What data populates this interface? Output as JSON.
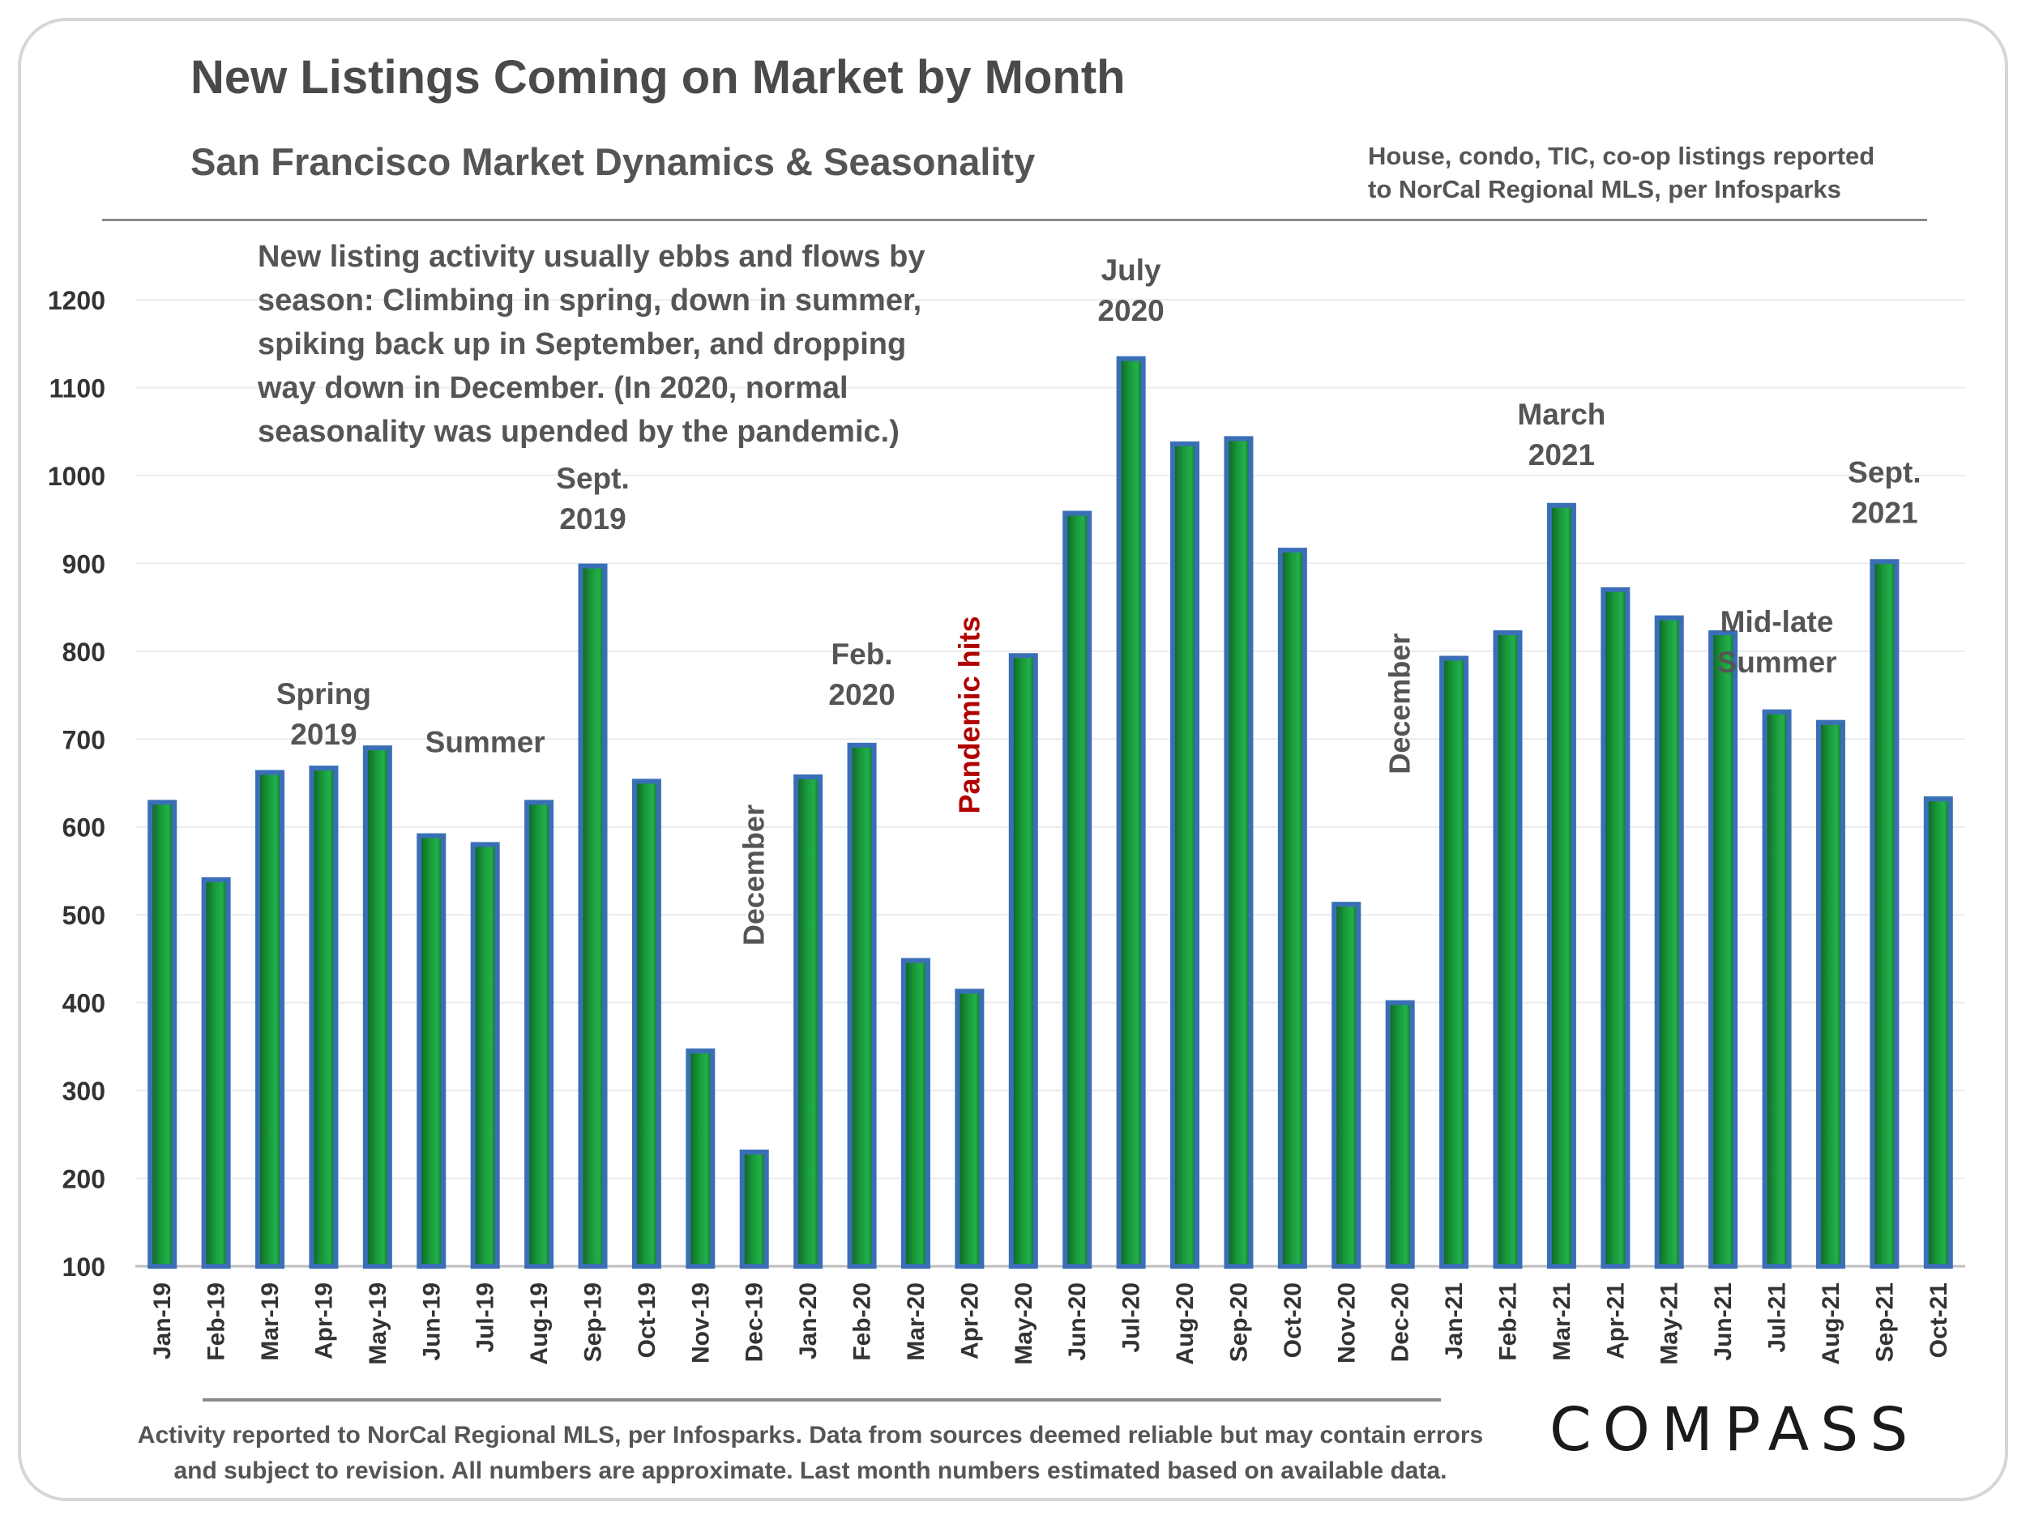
{
  "title": "New Listings Coming on Market by Month",
  "subtitle": "San Francisco Market Dynamics & Seasonality",
  "source_top": [
    "House, condo, TIC, co-op listings reported",
    "to NorCal Regional MLS, per Infosparks"
  ],
  "note_lines": [
    "New listing activity usually ebbs and flows by",
    "season: Climbing in spring, down in summer,",
    "spiking back up in September, and dropping",
    "way down in December. (In 2020, normal",
    "seasonality was upended by the pandemic.)"
  ],
  "footer": [
    "Activity reported to NorCal Regional MLS, per Infosparks. Data from sources deemed reliable but may contain errors",
    "and subject to revision. All numbers are approximate. Last month numbers estimated based on available data."
  ],
  "logo": "COMPASS",
  "chart_data": {
    "type": "bar",
    "title": "New Listings Coming on Market by Month",
    "xlabel": "",
    "ylabel": "",
    "ylim": [
      100,
      1200
    ],
    "yticks": [
      100,
      200,
      300,
      400,
      500,
      600,
      700,
      800,
      900,
      1000,
      1100,
      1200
    ],
    "grid": true,
    "categories": [
      "Jan-19",
      "Feb-19",
      "Mar-19",
      "Apr-19",
      "May-19",
      "Jun-19",
      "Jul-19",
      "Aug-19",
      "Sep-19",
      "Oct-19",
      "Nov-19",
      "Dec-19",
      "Jan-20",
      "Feb-20",
      "Mar-20",
      "Apr-20",
      "May-20",
      "Jun-20",
      "Jul-20",
      "Aug-20",
      "Sep-20",
      "Oct-20",
      "Nov-20",
      "Dec-20",
      "Jan-21",
      "Feb-21",
      "Mar-21",
      "Apr-21",
      "May-21",
      "Jun-21",
      "Jul-21",
      "Aug-21",
      "Sep-21",
      "Oct-21"
    ],
    "values": [
      628,
      540,
      662,
      667,
      690,
      590,
      580,
      628,
      897,
      652,
      345,
      230,
      657,
      693,
      448,
      413,
      795,
      957,
      1133,
      1036,
      1042,
      915,
      512,
      400,
      792,
      821,
      966,
      870,
      838,
      821,
      731,
      719,
      902,
      632
    ],
    "colors": {
      "bar_outline": "#3a6fb7",
      "bar_fill": "#1a9a3a",
      "bar_dark": "#0e5e22",
      "annotation": "#555555",
      "pandemic": "#b00000"
    },
    "annotations": [
      {
        "text": [
          "Spring",
          "2019"
        ],
        "category": "Apr-19",
        "value": 740,
        "rotated": false
      },
      {
        "text": [
          "Summer"
        ],
        "category": "Jul-19",
        "value": 685,
        "rotated": false
      },
      {
        "text": [
          "Sept.",
          "2019"
        ],
        "category": "Sep-19",
        "value": 985,
        "rotated": false
      },
      {
        "text": [
          "December"
        ],
        "category": "Dec-19",
        "value": 465,
        "rotated": true
      },
      {
        "text": [
          "Feb.",
          "2020"
        ],
        "category": "Feb-20",
        "value": 785,
        "rotated": false
      },
      {
        "text": [
          "Pandemic hits"
        ],
        "category": "Apr-20",
        "value": 615,
        "rotated": true,
        "color": "pandemic"
      },
      {
        "text": [
          "July",
          "2020"
        ],
        "category": "Jul-20",
        "value": 1222,
        "rotated": false
      },
      {
        "text": [
          "December"
        ],
        "category": "Dec-20",
        "value": 660,
        "rotated": true
      },
      {
        "text": [
          "March",
          "2021"
        ],
        "category": "Mar-21",
        "value": 1058,
        "rotated": false
      },
      {
        "text": [
          "Mid-late",
          "Summer"
        ],
        "category": "Jul-21",
        "value": 822,
        "rotated": false
      },
      {
        "text": [
          "Sept.",
          "2021"
        ],
        "category": "Sep-21",
        "value": 992,
        "rotated": false
      }
    ]
  }
}
